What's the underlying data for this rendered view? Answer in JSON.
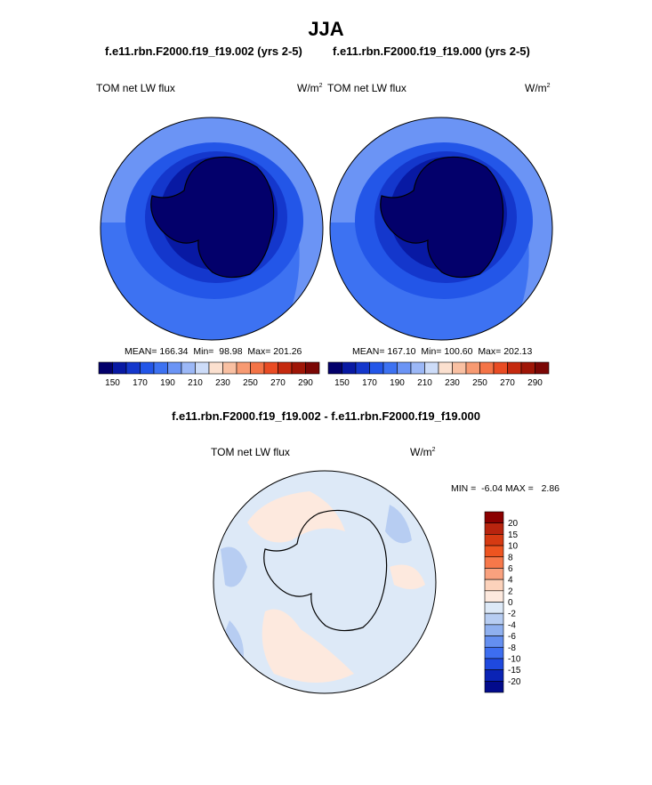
{
  "title": "JJA",
  "panels": [
    {
      "case_title": "f.e11.rbn.F2000.f19_f19.002 (yrs 2-5)",
      "variable": "TOM net LW flux",
      "units": "W/m",
      "units_exp": "2",
      "mean_label": "MEAN=",
      "mean": "166.34",
      "min_label": "Min=",
      "min": "98.98",
      "max_label": "Max=",
      "max": "201.26"
    },
    {
      "case_title": "f.e11.rbn.F2000.f19_f19.000 (yrs 2-5)",
      "variable": "TOM net LW flux",
      "units": "W/m",
      "units_exp": "2",
      "mean_label": "MEAN=",
      "mean": "167.10",
      "min_label": "Min=",
      "min": "100.60",
      "max_label": "Max=",
      "max": "202.13"
    }
  ],
  "diff": {
    "title": "f.e11.rbn.F2000.f19_f19.002 - f.e11.rbn.F2000.f19_f19.000",
    "variable": "TOM net LW flux",
    "units": "W/m",
    "units_exp": "2",
    "min_label": "MIN =",
    "min": "-6.04",
    "max_label": "MAX =",
    "max": "2.86"
  },
  "chart_data": [
    {
      "type": "heatmap",
      "projection": "south-polar-stereographic",
      "title": "f.e11.rbn.F2000.f19_f19.002 (yrs 2-5)",
      "variable": "TOM net LW flux",
      "units": "W/m2",
      "mean": 166.34,
      "min": 98.98,
      "max": 201.26,
      "colorbar": {
        "orientation": "horizontal",
        "tick_labels": [
          "150",
          "170",
          "190",
          "210",
          "230",
          "250",
          "270",
          "290"
        ],
        "levels": [
          140,
          150,
          160,
          170,
          180,
          190,
          200,
          210,
          220,
          230,
          240,
          250,
          260,
          270,
          280,
          290
        ],
        "colors": [
          "#03006b",
          "#0819a3",
          "#1437cc",
          "#2356e8",
          "#3d72f2",
          "#6b94f5",
          "#9cb8f7",
          "#cddcf8",
          "#fbe0cf",
          "#f9c0a2",
          "#f79a72",
          "#f47447",
          "#e94c24",
          "#c52a0f",
          "#9f1607",
          "#7b0705"
        ]
      }
    },
    {
      "type": "heatmap",
      "projection": "south-polar-stereographic",
      "title": "f.e11.rbn.F2000.f19_f19.000 (yrs 2-5)",
      "variable": "TOM net LW flux",
      "units": "W/m2",
      "mean": 167.1,
      "min": 100.6,
      "max": 202.13,
      "colorbar": {
        "orientation": "horizontal",
        "tick_labels": [
          "150",
          "170",
          "190",
          "210",
          "230",
          "250",
          "270",
          "290"
        ],
        "levels": [
          140,
          150,
          160,
          170,
          180,
          190,
          200,
          210,
          220,
          230,
          240,
          250,
          260,
          270,
          280,
          290
        ],
        "colors": [
          "#03006b",
          "#0819a3",
          "#1437cc",
          "#2356e8",
          "#3d72f2",
          "#6b94f5",
          "#9cb8f7",
          "#cddcf8",
          "#fbe0cf",
          "#f9c0a2",
          "#f79a72",
          "#f47447",
          "#e94c24",
          "#c52a0f",
          "#9f1607",
          "#7b0705"
        ]
      }
    },
    {
      "type": "heatmap",
      "projection": "south-polar-stereographic",
      "title": "f.e11.rbn.F2000.f19_f19.002 - f.e11.rbn.F2000.f19_f19.000",
      "variable": "TOM net LW flux",
      "units": "W/m2",
      "min": -6.04,
      "max": 2.86,
      "colorbar": {
        "orientation": "vertical",
        "tick_labels": [
          "20",
          "15",
          "10",
          "8",
          "6",
          "4",
          "2",
          "0",
          "-2",
          "-4",
          "-6",
          "-8",
          "-10",
          "-15",
          "-20"
        ],
        "colors": [
          "#8b0000",
          "#b8240e",
          "#d63a12",
          "#ee5420",
          "#f7784a",
          "#f9a17e",
          "#fcd2bb",
          "#fde9de",
          "#dde9f7",
          "#b7cdf2",
          "#8fb0ef",
          "#648ff0",
          "#3d6ef0",
          "#1f49de",
          "#0a23b5",
          "#020b8c"
        ]
      }
    }
  ]
}
